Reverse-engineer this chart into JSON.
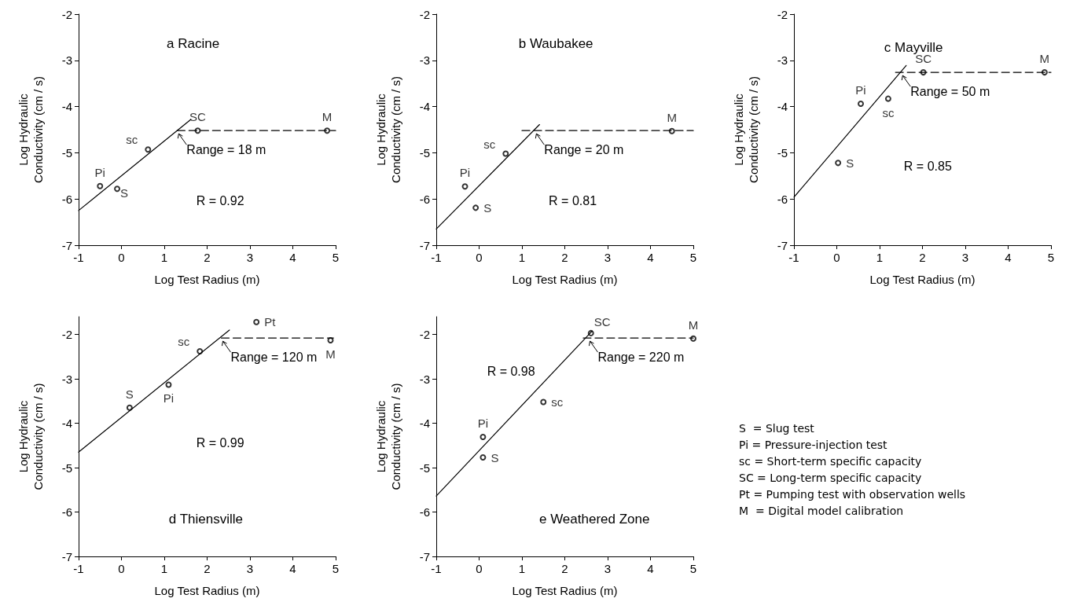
{
  "chart_data": [
    {
      "type": "scatter",
      "title": "a Racine",
      "xlabel": "Log Test Radius (m)",
      "ylabel": "Log Hydraulic\nConductivity (cm / s)",
      "xlim": [
        -1,
        5
      ],
      "xticks": [
        -1,
        0,
        1,
        2,
        3,
        4,
        5
      ],
      "ylim": [
        -7,
        -2
      ],
      "yticks": [
        -7,
        -6,
        -5,
        -4,
        -3,
        -2
      ],
      "marker": "circle",
      "grid": false,
      "legend": false,
      "annotations": [
        {
          "text": "Range = 18 m",
          "x": 1.3,
          "y": -4.52
        },
        "R = 0.92"
      ],
      "series": [
        {
          "name": "Pi",
          "color": "#000000",
          "x": [
            -0.5
          ],
          "values": [
            -5.72
          ]
        },
        {
          "name": "S",
          "color": "#000000",
          "x": [
            -0.1
          ],
          "values": [
            -5.78
          ]
        },
        {
          "name": "sc",
          "color": "#000000",
          "x": [
            0.62
          ],
          "values": [
            -4.93
          ]
        },
        {
          "name": "SC",
          "color": "#000000",
          "x": [
            1.78
          ],
          "values": [
            -4.52
          ]
        },
        {
          "name": "M",
          "color": "#000000",
          "x": [
            4.8
          ],
          "values": [
            -4.52
          ]
        },
        {
          "type": "line",
          "marker": "none",
          "line_style": "solid",
          "color": "#000000",
          "x": [
            -1,
            1.62
          ],
          "values": [
            -6.25,
            -4.28
          ]
        },
        {
          "type": "line",
          "marker": "none",
          "line_style": "dashed",
          "color": "#000000",
          "x": [
            1.3,
            5
          ],
          "values": [
            -4.52,
            -4.52
          ]
        }
      ]
    },
    {
      "type": "scatter",
      "title": "b Waubakee",
      "xlabel": "Log Test Radius (m)",
      "ylabel": "Log Hydraulic\nConductivity (cm / s)",
      "xlim": [
        -1,
        5
      ],
      "xticks": [
        -1,
        0,
        1,
        2,
        3,
        4,
        5
      ],
      "ylim": [
        -7,
        -2
      ],
      "yticks": [
        -7,
        -6,
        -5,
        -4,
        -3,
        -2
      ],
      "marker": "circle",
      "grid": false,
      "legend": false,
      "annotations": [
        {
          "text": "Range = 20 m",
          "x": 1.3,
          "y": -4.52
        },
        "R = 0.81"
      ],
      "series": [
        {
          "name": "Pi",
          "color": "#000000",
          "x": [
            -0.33
          ],
          "values": [
            -5.73
          ]
        },
        {
          "name": "S",
          "color": "#000000",
          "x": [
            -0.08
          ],
          "values": [
            -6.19
          ]
        },
        {
          "name": "sc",
          "color": "#000000",
          "x": [
            0.62
          ],
          "values": [
            -5.02
          ]
        },
        {
          "name": "M",
          "color": "#000000",
          "x": [
            4.5
          ],
          "values": [
            -4.53
          ]
        },
        {
          "type": "line",
          "marker": "none",
          "line_style": "solid",
          "color": "#000000",
          "x": [
            -1,
            1.41
          ],
          "values": [
            -6.65,
            -4.39
          ]
        },
        {
          "type": "line",
          "marker": "none",
          "line_style": "dashed",
          "color": "#000000",
          "x": [
            1.0,
            5
          ],
          "values": [
            -4.52,
            -4.52
          ]
        }
      ]
    },
    {
      "type": "scatter",
      "title": "c Mayville",
      "xlabel": "Log Test Radius (m)",
      "ylabel": "Log Hydraulic\nConductivity (cm / s)",
      "xlim": [
        -1,
        5
      ],
      "xticks": [
        -1,
        0,
        1,
        2,
        3,
        4,
        5
      ],
      "ylim": [
        -7,
        -2
      ],
      "yticks": [
        -7,
        -6,
        -5,
        -4,
        -3,
        -2
      ],
      "marker": "circle",
      "grid": false,
      "legend": false,
      "annotations": [
        {
          "text": "Range = 50 m",
          "x": 1.5,
          "y": -3.26
        },
        "R = 0.85"
      ],
      "series": [
        {
          "name": "Pi",
          "color": "#000000",
          "x": [
            0.56
          ],
          "values": [
            -3.94
          ]
        },
        {
          "name": "sc",
          "color": "#000000",
          "x": [
            1.2
          ],
          "values": [
            -3.83
          ]
        },
        {
          "name": "S",
          "color": "#000000",
          "x": [
            0.03
          ],
          "values": [
            -5.22
          ]
        },
        {
          "name": "SC",
          "color": "#000000",
          "x": [
            2.02
          ],
          "values": [
            -3.26
          ]
        },
        {
          "name": "M",
          "color": "#000000",
          "x": [
            4.85
          ],
          "values": [
            -3.26
          ]
        },
        {
          "type": "line",
          "marker": "none",
          "line_style": "solid",
          "color": "#000000",
          "x": [
            -1,
            1.62
          ],
          "values": [
            -5.96,
            -3.11
          ]
        },
        {
          "type": "line",
          "marker": "none",
          "line_style": "dashed",
          "color": "#000000",
          "x": [
            1.37,
            5
          ],
          "values": [
            -3.26,
            -3.26
          ]
        }
      ]
    },
    {
      "type": "scatter",
      "title": "d Thiensville",
      "xlabel": "Log Test Radius (m)",
      "ylabel": "Log Hydraulic\nConductivity (cm / s)",
      "xlim": [
        -1,
        5
      ],
      "xticks": [
        -1,
        0,
        1,
        2,
        3,
        4,
        5
      ],
      "ylim": [
        -7,
        -1.6
      ],
      "yticks": [
        -7,
        -6,
        -5,
        -4,
        -3,
        -2
      ],
      "marker": "circle",
      "grid": false,
      "legend": false,
      "annotations": [
        {
          "text": "Range = 120 m",
          "x": 2.33,
          "y": -2.08
        },
        "R = 0.99"
      ],
      "series": [
        {
          "name": "S",
          "color": "#000000",
          "x": [
            0.19
          ],
          "values": [
            -3.65
          ]
        },
        {
          "name": "Pi",
          "color": "#000000",
          "x": [
            1.1
          ],
          "values": [
            -3.13
          ]
        },
        {
          "name": "sc",
          "color": "#000000",
          "x": [
            1.83
          ],
          "values": [
            -2.38
          ]
        },
        {
          "name": "Pt",
          "color": "#000000",
          "x": [
            3.15
          ],
          "values": [
            -1.72
          ]
        },
        {
          "name": "M",
          "color": "#000000",
          "x": [
            4.88
          ],
          "values": [
            -2.13
          ]
        },
        {
          "type": "line",
          "marker": "none",
          "line_style": "solid",
          "color": "#000000",
          "x": [
            -1,
            2.52
          ],
          "values": [
            -4.65,
            -1.9
          ]
        },
        {
          "type": "line",
          "marker": "none",
          "line_style": "dashed",
          "color": "#000000",
          "x": [
            2.33,
            4.95
          ],
          "values": [
            -2.08,
            -2.08
          ]
        }
      ]
    },
    {
      "type": "scatter",
      "title": "e Weathered Zone",
      "xlabel": "Log Test Radius (m)",
      "ylabel": "Log Hydraulic\nConductivity (cm / s)",
      "xlim": [
        -1,
        5
      ],
      "xticks": [
        -1,
        0,
        1,
        2,
        3,
        4,
        5
      ],
      "ylim": [
        -7,
        -1.6
      ],
      "yticks": [
        -7,
        -6,
        -5,
        -4,
        -3,
        -2
      ],
      "marker": "circle",
      "grid": false,
      "legend": false,
      "annotations": [
        {
          "text": "Range = 220 m",
          "x": 2.55,
          "y": -2.08
        },
        "R = 0.98"
      ],
      "series": [
        {
          "name": "Pi",
          "color": "#000000",
          "x": [
            0.09
          ],
          "values": [
            -4.31
          ]
        },
        {
          "name": "S",
          "color": "#000000",
          "x": [
            0.09
          ],
          "values": [
            -4.77
          ]
        },
        {
          "name": "sc",
          "color": "#000000",
          "x": [
            1.5
          ],
          "values": [
            -3.52
          ]
        },
        {
          "name": "SC",
          "color": "#000000",
          "x": [
            2.61
          ],
          "values": [
            -1.97
          ]
        },
        {
          "name": "M",
          "color": "#000000",
          "x": [
            5
          ],
          "values": [
            -2.09
          ]
        },
        {
          "type": "line",
          "marker": "none",
          "line_style": "solid",
          "color": "#000000",
          "x": [
            -1,
            2.64
          ],
          "values": [
            -5.64,
            -1.92
          ]
        },
        {
          "type": "line",
          "marker": "none",
          "line_style": "dashed",
          "color": "#000000",
          "x": [
            2.43,
            5
          ],
          "values": [
            -2.08,
            -2.08
          ]
        }
      ]
    },
    {
      "type": "other",
      "annotations": [
        "S  = Slug test",
        "Pi = Pressure-injection test",
        "sc = Short-term specific capacity",
        "SC = Long-term specific capacity",
        "Pt = Pumping test with observation wells",
        "M  = Digital model calibration"
      ]
    }
  ]
}
